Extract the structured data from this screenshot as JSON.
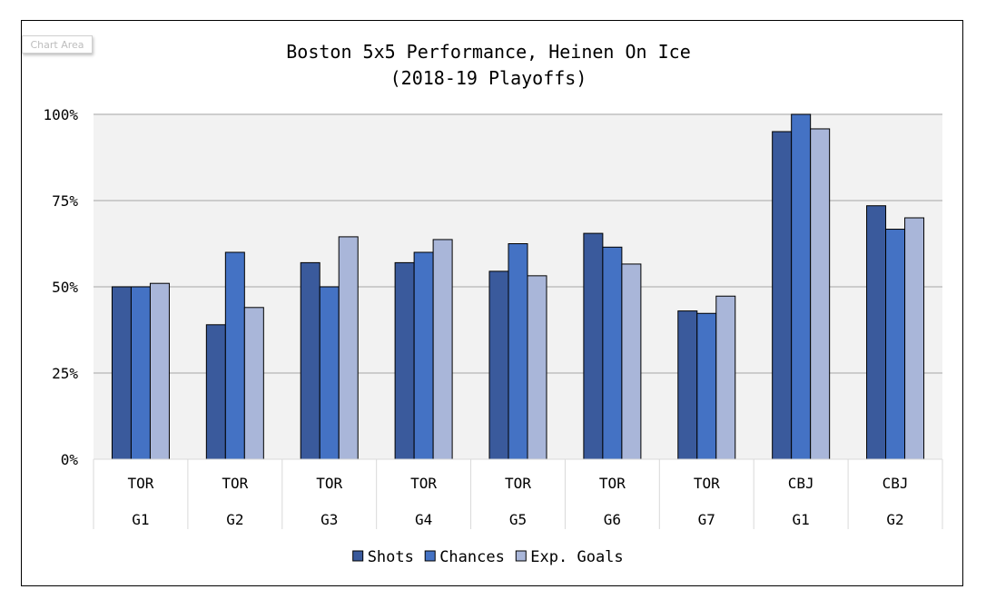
{
  "chart_area_label": "Chart Area",
  "chart_data": {
    "type": "bar",
    "title": "Boston 5x5 Performance, Heinen On Ice",
    "subtitle": "(2018-19 Playoffs)",
    "categories": [
      {
        "team": "TOR",
        "game": "G1"
      },
      {
        "team": "TOR",
        "game": "G2"
      },
      {
        "team": "TOR",
        "game": "G3"
      },
      {
        "team": "TOR",
        "game": "G4"
      },
      {
        "team": "TOR",
        "game": "G5"
      },
      {
        "team": "TOR",
        "game": "G6"
      },
      {
        "team": "TOR",
        "game": "G7"
      },
      {
        "team": "CBJ",
        "game": "G1"
      },
      {
        "team": "CBJ",
        "game": "G2"
      }
    ],
    "series": [
      {
        "name": "Shots",
        "color": "#3a5a9c",
        "values": [
          50,
          39,
          57,
          57,
          54.5,
          65.5,
          43,
          95,
          73.5
        ]
      },
      {
        "name": "Chances",
        "color": "#4472c4",
        "values": [
          50,
          60,
          50,
          60,
          62.5,
          61.5,
          42.3,
          100,
          66.7
        ]
      },
      {
        "name": "Exp. Goals",
        "color": "#a9b6d9",
        "values": [
          51,
          44,
          64.5,
          63.7,
          53.2,
          56.6,
          47.3,
          95.8,
          70
        ]
      }
    ],
    "ylim": [
      0,
      100
    ],
    "yticks": [
      "0%",
      "25%",
      "50%",
      "75%",
      "100%"
    ],
    "ytick_values": [
      0,
      25,
      50,
      75,
      100
    ],
    "grid": true,
    "legend_position": "bottom"
  }
}
